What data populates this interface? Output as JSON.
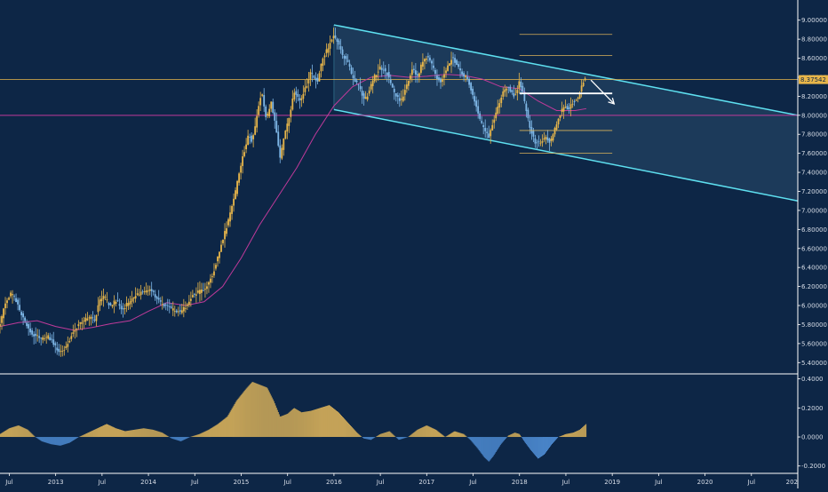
{
  "chart_data": {
    "type": "candlestick",
    "title": "",
    "xlabel": "",
    "ylabel": "",
    "grid": false,
    "colors": {
      "background": "#0d2646",
      "up": "#e8b64a",
      "down": "#7fb8e8",
      "channel": "#5ee0f0",
      "channel_fill": "#2a4a6c",
      "moving_average": "#c03a9a",
      "horizontal_level": "#c03a9a",
      "price_line": "#e8b64a",
      "fib_lines": "#d9b15a",
      "projection": "#ffffff",
      "osc_up": "#d9b15a",
      "osc_down": "#4f8ed6"
    },
    "price_axis": {
      "ylim": [
        5.3,
        9.1
      ],
      "ticks": [
        "9.00000",
        "8.80000",
        "8.60000",
        "8.40000",
        "8.20000",
        "8.00000",
        "7.80000",
        "7.60000",
        "7.40000",
        "7.20000",
        "7.00000",
        "6.80000",
        "6.60000",
        "6.40000",
        "6.20000",
        "6.00000",
        "5.80000",
        "5.60000",
        "5.40000"
      ],
      "tick_values": [
        9.0,
        8.8,
        8.6,
        8.4,
        8.2,
        8.0,
        7.8,
        7.6,
        7.4,
        7.2,
        7.0,
        6.8,
        6.6,
        6.4,
        6.2,
        6.0,
        5.8,
        5.6,
        5.4
      ],
      "current_price": 8.37542,
      "current_price_label": "8.37542"
    },
    "oscillator_axis": {
      "ylim": [
        -0.22,
        0.41
      ],
      "ticks": [
        "0.4000",
        "0.2000",
        "0.0000",
        "-0.2000"
      ],
      "tick_values": [
        0.4,
        0.2,
        0.0,
        -0.2
      ]
    },
    "time_axis": {
      "xlim": [
        2012.4,
        2021.0
      ],
      "labels": [
        "Jul",
        "2013",
        "Jul",
        "2014",
        "Jul",
        "2015",
        "Jul",
        "2016",
        "Jul",
        "2017",
        "Jul",
        "2018",
        "Jul",
        "2019",
        "Jul",
        "2020",
        "Jul",
        "202"
      ],
      "label_times": [
        2012.5,
        2013.0,
        2013.5,
        2014.0,
        2014.5,
        2015.0,
        2015.5,
        2016.0,
        2016.5,
        2017.0,
        2017.5,
        2018.0,
        2018.5,
        2019.0,
        2019.5,
        2020.0,
        2020.5,
        2021.0
      ]
    },
    "price_path": [
      [
        2012.4,
        5.8
      ],
      [
        2012.45,
        6.02
      ],
      [
        2012.52,
        6.13
      ],
      [
        2012.57,
        6.05
      ],
      [
        2012.63,
        5.9
      ],
      [
        2012.68,
        5.8
      ],
      [
        2012.75,
        5.7
      ],
      [
        2012.85,
        5.65
      ],
      [
        2012.92,
        5.68
      ],
      [
        2013.0,
        5.56
      ],
      [
        2013.07,
        5.5
      ],
      [
        2013.12,
        5.58
      ],
      [
        2013.2,
        5.75
      ],
      [
        2013.27,
        5.82
      ],
      [
        2013.35,
        5.88
      ],
      [
        2013.42,
        5.84
      ],
      [
        2013.47,
        6.05
      ],
      [
        2013.52,
        6.1
      ],
      [
        2013.58,
        6.0
      ],
      [
        2013.65,
        6.05
      ],
      [
        2013.72,
        5.96
      ],
      [
        2013.8,
        6.05
      ],
      [
        2013.88,
        6.12
      ],
      [
        2013.95,
        6.15
      ],
      [
        2014.02,
        6.18
      ],
      [
        2014.1,
        6.05
      ],
      [
        2014.17,
        6.0
      ],
      [
        2014.25,
        5.96
      ],
      [
        2014.33,
        5.93
      ],
      [
        2014.4,
        5.98
      ],
      [
        2014.47,
        6.1
      ],
      [
        2014.55,
        6.15
      ],
      [
        2014.62,
        6.18
      ],
      [
        2014.7,
        6.35
      ],
      [
        2014.77,
        6.6
      ],
      [
        2014.85,
        6.85
      ],
      [
        2014.93,
        7.15
      ],
      [
        2015.0,
        7.5
      ],
      [
        2015.08,
        7.8
      ],
      [
        2015.12,
        7.72
      ],
      [
        2015.17,
        8.0
      ],
      [
        2015.22,
        8.25
      ],
      [
        2015.27,
        7.95
      ],
      [
        2015.32,
        8.15
      ],
      [
        2015.37,
        7.88
      ],
      [
        2015.42,
        7.55
      ],
      [
        2015.47,
        7.8
      ],
      [
        2015.52,
        8.0
      ],
      [
        2015.57,
        8.25
      ],
      [
        2015.63,
        8.15
      ],
      [
        2015.7,
        8.3
      ],
      [
        2015.75,
        8.45
      ],
      [
        2015.82,
        8.35
      ],
      [
        2015.88,
        8.6
      ],
      [
        2015.94,
        8.72
      ],
      [
        2016.0,
        8.85
      ],
      [
        2016.05,
        8.75
      ],
      [
        2016.1,
        8.62
      ],
      [
        2016.15,
        8.55
      ],
      [
        2016.2,
        8.4
      ],
      [
        2016.27,
        8.3
      ],
      [
        2016.33,
        8.15
      ],
      [
        2016.38,
        8.25
      ],
      [
        2016.43,
        8.4
      ],
      [
        2016.5,
        8.5
      ],
      [
        2016.57,
        8.45
      ],
      [
        2016.62,
        8.3
      ],
      [
        2016.67,
        8.2
      ],
      [
        2016.72,
        8.15
      ],
      [
        2016.78,
        8.3
      ],
      [
        2016.85,
        8.5
      ],
      [
        2016.9,
        8.4
      ],
      [
        2016.95,
        8.55
      ],
      [
        2017.0,
        8.62
      ],
      [
        2017.05,
        8.55
      ],
      [
        2017.1,
        8.4
      ],
      [
        2017.15,
        8.35
      ],
      [
        2017.22,
        8.5
      ],
      [
        2017.27,
        8.6
      ],
      [
        2017.32,
        8.55
      ],
      [
        2017.37,
        8.45
      ],
      [
        2017.42,
        8.4
      ],
      [
        2017.47,
        8.3
      ],
      [
        2017.52,
        8.15
      ],
      [
        2017.57,
        7.95
      ],
      [
        2017.62,
        7.85
      ],
      [
        2017.67,
        7.78
      ],
      [
        2017.72,
        7.95
      ],
      [
        2017.77,
        8.1
      ],
      [
        2017.82,
        8.25
      ],
      [
        2017.88,
        8.3
      ],
      [
        2017.95,
        8.2
      ],
      [
        2018.0,
        8.35
      ],
      [
        2018.03,
        8.25
      ],
      [
        2018.07,
        8.05
      ],
      [
        2018.12,
        7.85
      ],
      [
        2018.17,
        7.72
      ],
      [
        2018.22,
        7.7
      ],
      [
        2018.28,
        7.78
      ],
      [
        2018.33,
        7.7
      ],
      [
        2018.38,
        7.85
      ],
      [
        2018.43,
        8.0
      ],
      [
        2018.48,
        8.1
      ],
      [
        2018.53,
        8.05
      ],
      [
        2018.58,
        8.15
      ],
      [
        2018.63,
        8.18
      ],
      [
        2018.67,
        8.3
      ],
      [
        2018.7,
        8.4
      ],
      [
        2018.72,
        8.38
      ]
    ],
    "moving_average_path": [
      [
        2012.4,
        5.78
      ],
      [
        2012.6,
        5.82
      ],
      [
        2012.8,
        5.84
      ],
      [
        2013.0,
        5.78
      ],
      [
        2013.2,
        5.74
      ],
      [
        2013.4,
        5.77
      ],
      [
        2013.6,
        5.81
      ],
      [
        2013.8,
        5.84
      ],
      [
        2014.0,
        5.94
      ],
      [
        2014.2,
        6.03
      ],
      [
        2014.4,
        6.0
      ],
      [
        2014.6,
        6.04
      ],
      [
        2014.8,
        6.2
      ],
      [
        2015.0,
        6.5
      ],
      [
        2015.2,
        6.85
      ],
      [
        2015.4,
        7.15
      ],
      [
        2015.6,
        7.45
      ],
      [
        2015.8,
        7.8
      ],
      [
        2016.0,
        8.1
      ],
      [
        2016.2,
        8.3
      ],
      [
        2016.4,
        8.4
      ],
      [
        2016.6,
        8.42
      ],
      [
        2016.8,
        8.4
      ],
      [
        2017.0,
        8.41
      ],
      [
        2017.2,
        8.43
      ],
      [
        2017.4,
        8.42
      ],
      [
        2017.6,
        8.38
      ],
      [
        2017.8,
        8.3
      ],
      [
        2018.0,
        8.28
      ],
      [
        2018.2,
        8.15
      ],
      [
        2018.4,
        8.05
      ],
      [
        2018.6,
        8.05
      ],
      [
        2018.72,
        8.07
      ]
    ],
    "channel": {
      "upper": [
        [
          2016.0,
          8.95
        ],
        [
          2021.0,
          8.0
        ]
      ],
      "lower": [
        [
          2016.0,
          8.06
        ],
        [
          2021.0,
          7.1
        ]
      ]
    },
    "horizontal_level": 8.0,
    "fib_levels": {
      "x_range": [
        2018.0,
        2019.0
      ],
      "values": [
        8.85,
        8.63,
        8.23,
        7.84,
        7.6
      ]
    },
    "projection_arrow": [
      [
        2018.77,
        8.37
      ],
      [
        2019.02,
        8.12
      ]
    ],
    "oscillator_path": [
      [
        2012.4,
        0.02
      ],
      [
        2012.5,
        0.06
      ],
      [
        2012.6,
        0.08
      ],
      [
        2012.7,
        0.05
      ],
      [
        2012.78,
        0.0
      ],
      [
        2012.85,
        -0.03
      ],
      [
        2012.95,
        -0.05
      ],
      [
        2013.05,
        -0.06
      ],
      [
        2013.15,
        -0.04
      ],
      [
        2013.25,
        0.0
      ],
      [
        2013.35,
        0.03
      ],
      [
        2013.45,
        0.06
      ],
      [
        2013.55,
        0.09
      ],
      [
        2013.65,
        0.06
      ],
      [
        2013.75,
        0.04
      ],
      [
        2013.85,
        0.05
      ],
      [
        2013.95,
        0.06
      ],
      [
        2014.05,
        0.05
      ],
      [
        2014.15,
        0.03
      ],
      [
        2014.25,
        -0.01
      ],
      [
        2014.35,
        -0.03
      ],
      [
        2014.45,
        0.0
      ],
      [
        2014.55,
        0.02
      ],
      [
        2014.65,
        0.05
      ],
      [
        2014.75,
        0.09
      ],
      [
        2014.85,
        0.14
      ],
      [
        2014.95,
        0.25
      ],
      [
        2015.05,
        0.33
      ],
      [
        2015.12,
        0.38
      ],
      [
        2015.2,
        0.36
      ],
      [
        2015.28,
        0.34
      ],
      [
        2015.35,
        0.25
      ],
      [
        2015.42,
        0.14
      ],
      [
        2015.5,
        0.16
      ],
      [
        2015.57,
        0.2
      ],
      [
        2015.65,
        0.17
      ],
      [
        2015.75,
        0.18
      ],
      [
        2015.85,
        0.2
      ],
      [
        2015.95,
        0.22
      ],
      [
        2016.05,
        0.17
      ],
      [
        2016.15,
        0.1
      ],
      [
        2016.25,
        0.03
      ],
      [
        2016.32,
        -0.01
      ],
      [
        2016.4,
        -0.02
      ],
      [
        2016.5,
        0.02
      ],
      [
        2016.6,
        0.04
      ],
      [
        2016.7,
        -0.02
      ],
      [
        2016.8,
        0.0
      ],
      [
        2016.9,
        0.05
      ],
      [
        2017.0,
        0.08
      ],
      [
        2017.1,
        0.05
      ],
      [
        2017.2,
        0.0
      ],
      [
        2017.3,
        0.04
      ],
      [
        2017.4,
        0.02
      ],
      [
        2017.47,
        -0.02
      ],
      [
        2017.55,
        -0.08
      ],
      [
        2017.62,
        -0.14
      ],
      [
        2017.67,
        -0.17
      ],
      [
        2017.72,
        -0.13
      ],
      [
        2017.8,
        -0.05
      ],
      [
        2017.88,
        0.01
      ],
      [
        2017.95,
        0.03
      ],
      [
        2018.0,
        0.02
      ],
      [
        2018.05,
        -0.03
      ],
      [
        2018.12,
        -0.09
      ],
      [
        2018.2,
        -0.15
      ],
      [
        2018.27,
        -0.12
      ],
      [
        2018.35,
        -0.05
      ],
      [
        2018.42,
        0.0
      ],
      [
        2018.5,
        0.02
      ],
      [
        2018.58,
        0.03
      ],
      [
        2018.65,
        0.05
      ],
      [
        2018.72,
        0.09
      ]
    ]
  }
}
